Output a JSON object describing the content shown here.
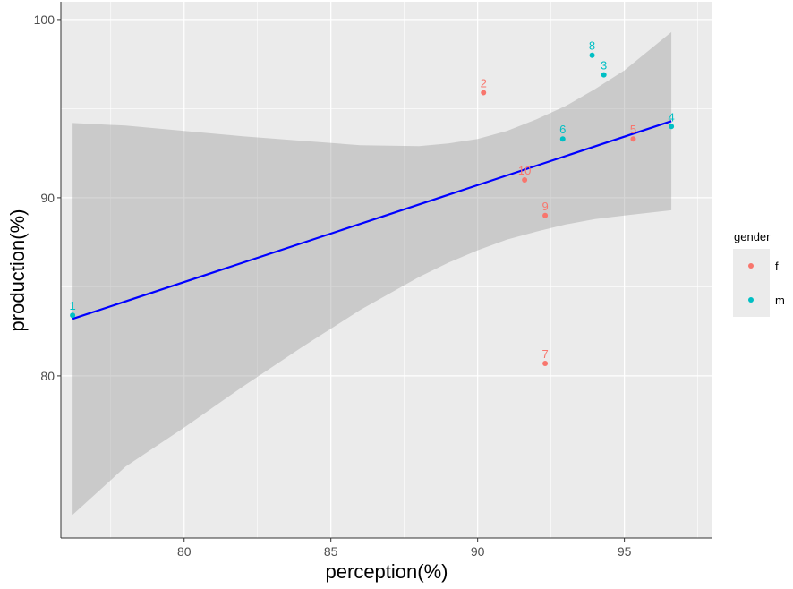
{
  "chart_data": {
    "type": "scatter",
    "title": "",
    "xlabel": "perception(%)",
    "ylabel": "production(%)",
    "xlim": [
      75.8,
      98.0
    ],
    "ylim": [
      70.9,
      101.0
    ],
    "x_ticks": [
      80,
      85,
      90,
      95
    ],
    "y_ticks": [
      80,
      90,
      100
    ],
    "grid": true,
    "legend": {
      "title": "gender",
      "position": "right"
    },
    "series": [
      {
        "name": "f",
        "color": "#F8766D",
        "points": [
          {
            "label": "2",
            "x": 90.2,
            "y": 95.9
          },
          {
            "label": "5",
            "x": 95.3,
            "y": 93.3
          },
          {
            "label": "7",
            "x": 92.3,
            "y": 80.7
          },
          {
            "label": "9",
            "x": 92.3,
            "y": 89.0
          },
          {
            "label": "10",
            "x": 91.6,
            "y": 91.0
          }
        ]
      },
      {
        "name": "m",
        "color": "#00BFC4",
        "points": [
          {
            "label": "1",
            "x": 76.2,
            "y": 83.4
          },
          {
            "label": "3",
            "x": 94.3,
            "y": 96.9
          },
          {
            "label": "4",
            "x": 96.6,
            "y": 94.0
          },
          {
            "label": "6",
            "x": 92.9,
            "y": 93.3
          },
          {
            "label": "8",
            "x": 93.9,
            "y": 98.0
          }
        ]
      }
    ],
    "trend": {
      "method": "lm",
      "color": "#0000FF",
      "line": [
        {
          "x": 76.2,
          "y": 83.2
        },
        {
          "x": 96.6,
          "y": 94.3
        }
      ],
      "band": [
        {
          "x": 76.2,
          "lo": 72.2,
          "hi": 94.2
        },
        {
          "x": 78.0,
          "lo": 74.9,
          "hi": 94.05
        },
        {
          "x": 80.0,
          "lo": 77.1,
          "hi": 93.75
        },
        {
          "x": 82.0,
          "lo": 79.4,
          "hi": 93.45
        },
        {
          "x": 84.0,
          "lo": 81.6,
          "hi": 93.2
        },
        {
          "x": 86.0,
          "lo": 83.7,
          "hi": 92.95
        },
        {
          "x": 88.0,
          "lo": 85.55,
          "hi": 92.9
        },
        {
          "x": 89.0,
          "lo": 86.35,
          "hi": 93.05
        },
        {
          "x": 90.0,
          "lo": 87.05,
          "hi": 93.3
        },
        {
          "x": 91.0,
          "lo": 87.65,
          "hi": 93.75
        },
        {
          "x": 92.0,
          "lo": 88.1,
          "hi": 94.4
        },
        {
          "x": 93.0,
          "lo": 88.5,
          "hi": 95.15
        },
        {
          "x": 94.0,
          "lo": 88.8,
          "hi": 96.1
        },
        {
          "x": 95.0,
          "lo": 89.0,
          "hi": 97.15
        },
        {
          "x": 96.6,
          "lo": 89.3,
          "hi": 99.3
        }
      ]
    }
  }
}
